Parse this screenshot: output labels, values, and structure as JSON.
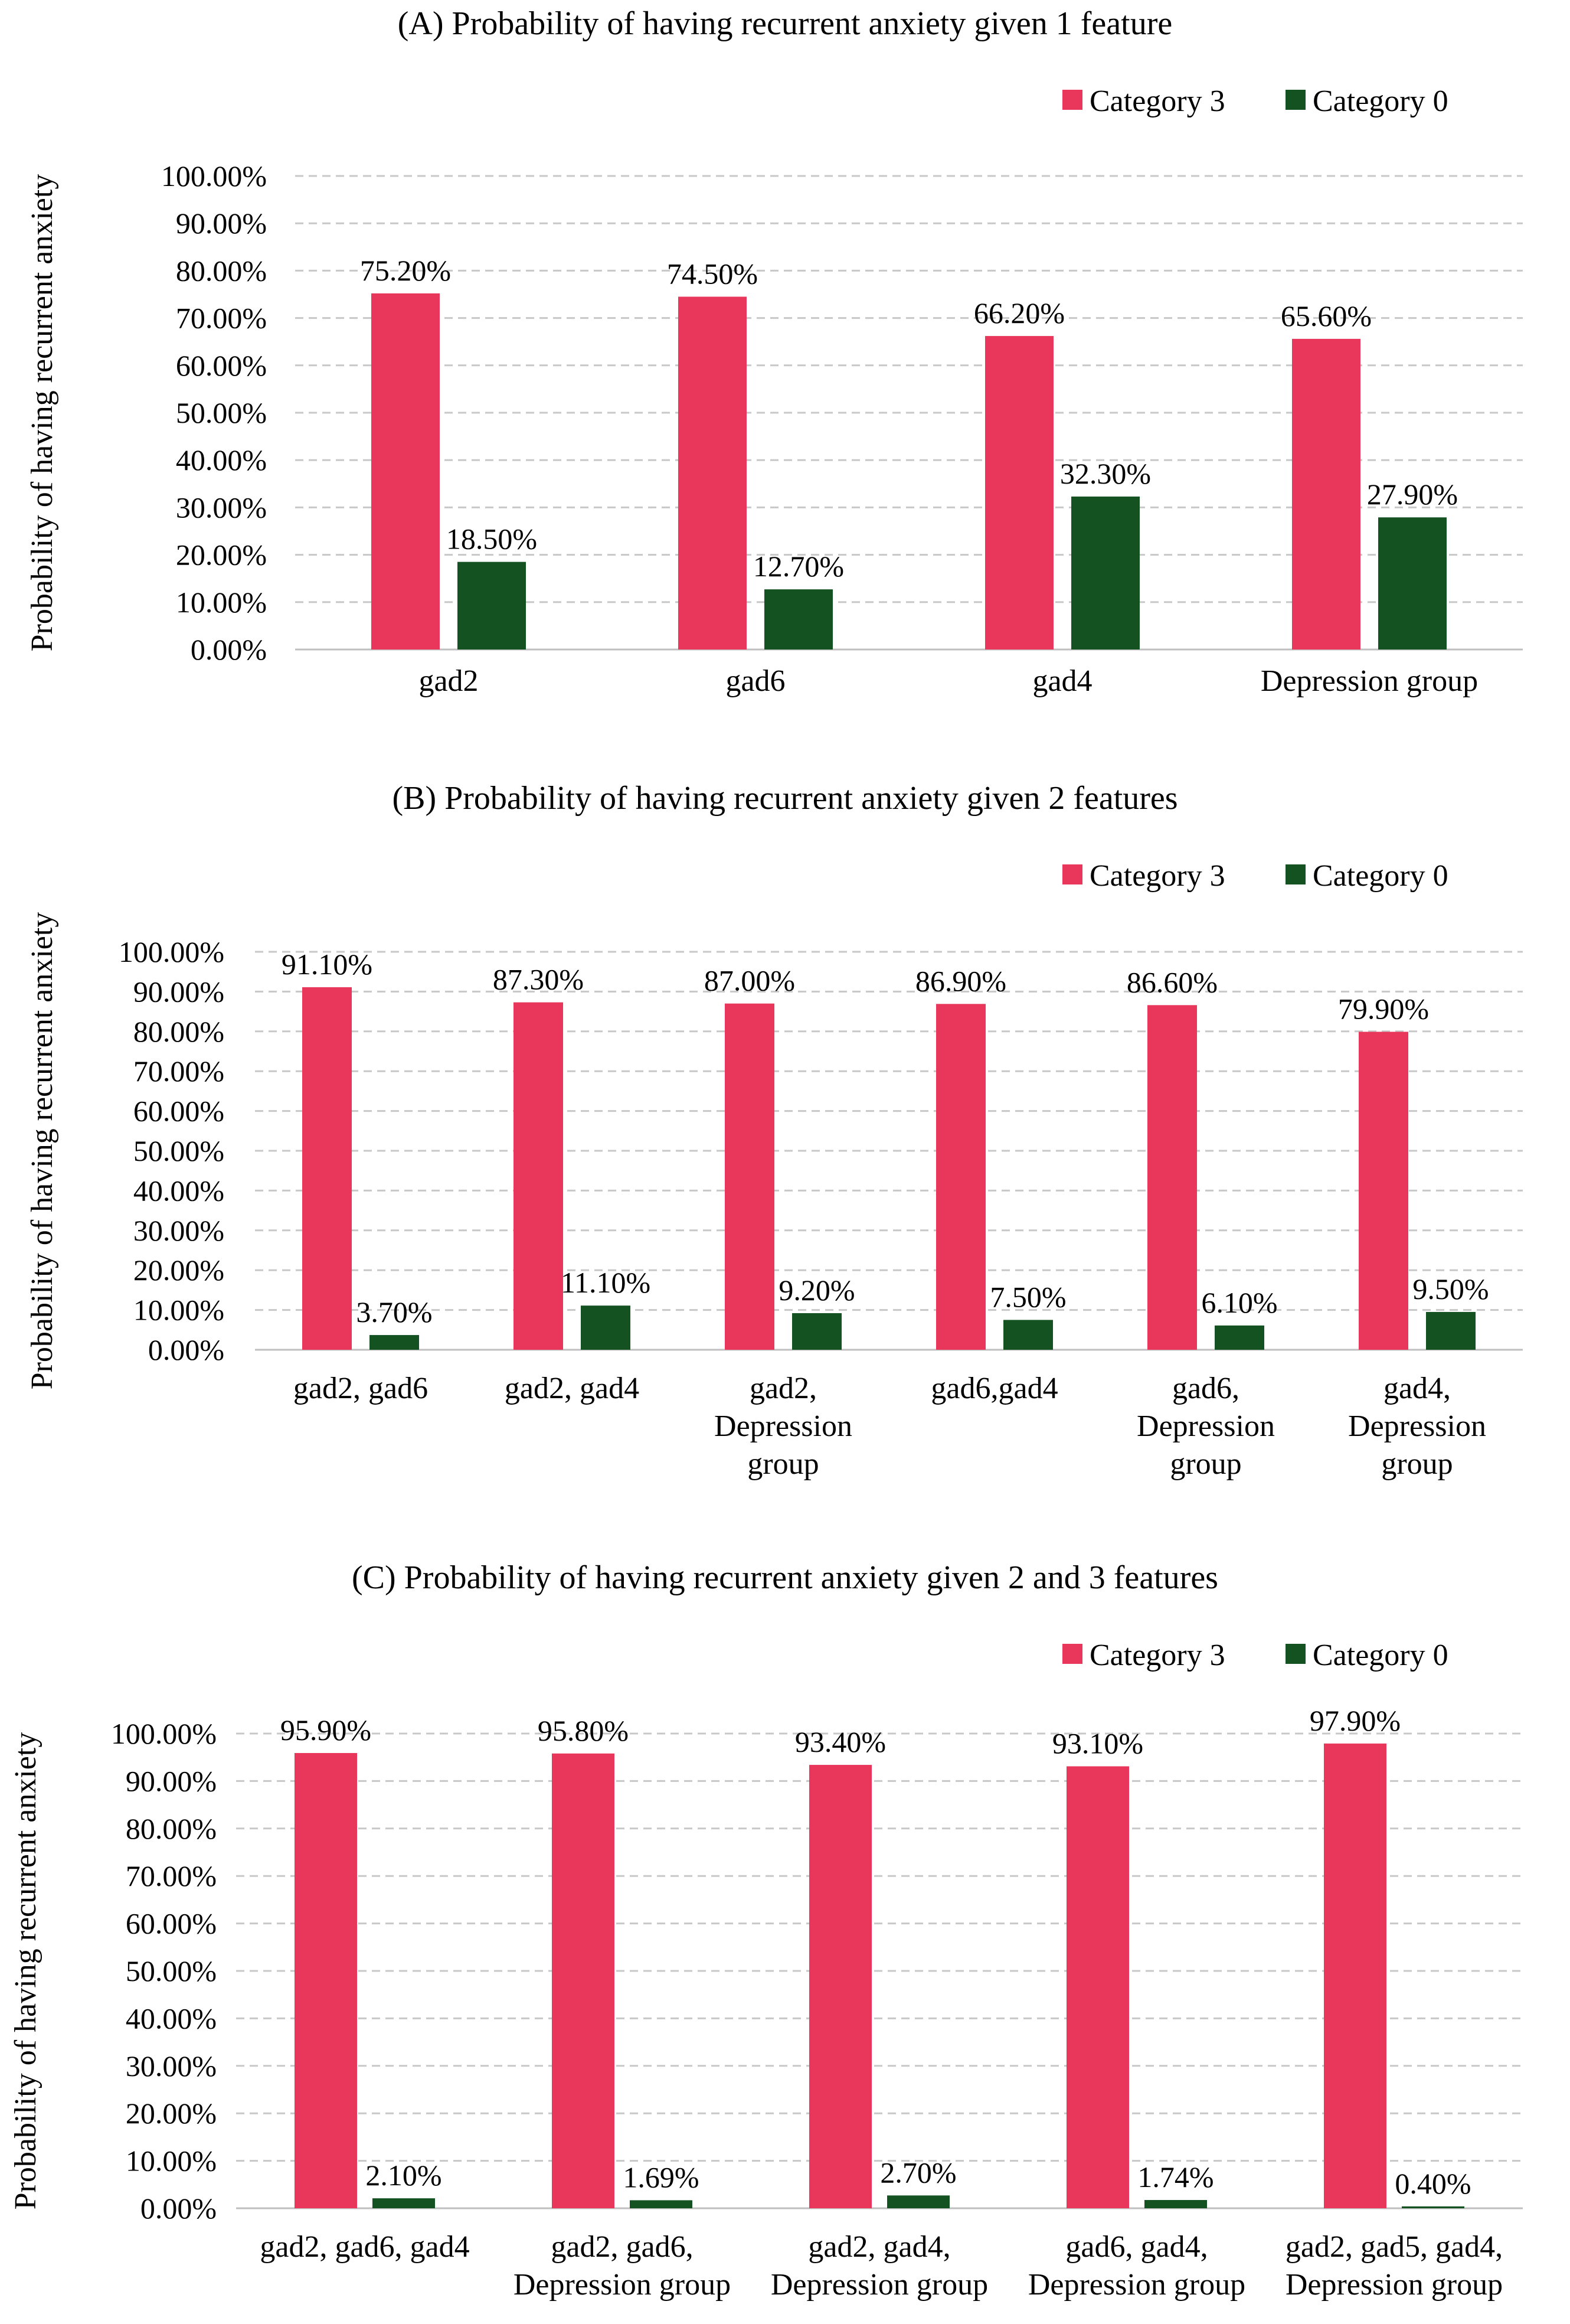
{
  "colors": {
    "category3": "#E8375A",
    "category0": "#145222",
    "grid": "#C8C8C8",
    "axis": "#BFBFBF"
  },
  "legend": {
    "category3": "Category 3",
    "category0": "Category 0"
  },
  "chart_data": [
    {
      "type": "bar",
      "title": "(A) Probability of having recurrent anxiety given 1 feature",
      "ylabel": "Probability of having recurrent anxiety",
      "xlabel": "",
      "ylim": [
        0,
        100
      ],
      "ytick_step": 10,
      "ytick_labels": [
        "0.00%",
        "10.00%",
        "20.00%",
        "30.00%",
        "40.00%",
        "50.00%",
        "60.00%",
        "70.00%",
        "80.00%",
        "90.00%",
        "100.00%"
      ],
      "legend_position": "top-right",
      "categories": [
        [
          "gad2"
        ],
        [
          "gad6"
        ],
        [
          "gad4"
        ],
        [
          "Depression group"
        ]
      ],
      "series": [
        {
          "name": "Category 3",
          "values": [
            75.2,
            74.5,
            66.2,
            65.6
          ],
          "labels": [
            "75.20%",
            "74.50%",
            "66.20%",
            "65.60%"
          ]
        },
        {
          "name": "Category 0",
          "values": [
            18.5,
            12.7,
            32.3,
            27.9
          ],
          "labels": [
            "18.50%",
            "12.70%",
            "32.30%",
            "27.90%"
          ]
        }
      ]
    },
    {
      "type": "bar",
      "title": "(B) Probability of having recurrent anxiety given 2 features",
      "ylabel": "Probability of having recurrent anxiety",
      "xlabel": "",
      "ylim": [
        0,
        100
      ],
      "ytick_step": 10,
      "ytick_labels": [
        "0.00%",
        "10.00%",
        "20.00%",
        "30.00%",
        "40.00%",
        "50.00%",
        "60.00%",
        "70.00%",
        "80.00%",
        "90.00%",
        "100.00%"
      ],
      "legend_position": "top-right",
      "categories": [
        [
          "gad2, gad6"
        ],
        [
          "gad2, gad4"
        ],
        [
          "gad2,",
          "Depression",
          "group"
        ],
        [
          "gad6,gad4"
        ],
        [
          "gad6,",
          "Depression",
          "group"
        ],
        [
          "gad4,",
          "Depression",
          "group"
        ]
      ],
      "series": [
        {
          "name": "Category 3",
          "values": [
            91.1,
            87.3,
            87.0,
            86.9,
            86.6,
            79.9
          ],
          "labels": [
            "91.10%",
            "87.30%",
            "87.00%",
            "86.90%",
            "86.60%",
            "79.90%"
          ]
        },
        {
          "name": "Category 0",
          "values": [
            3.7,
            11.1,
            9.2,
            7.5,
            6.1,
            9.5
          ],
          "labels": [
            "3.70%",
            "11.10%",
            "9.20%",
            "7.50%",
            "6.10%",
            "9.50%"
          ]
        }
      ]
    },
    {
      "type": "bar",
      "title": "(C) Probability of having recurrent anxiety given 2 and 3 features",
      "ylabel": "Probability of having recurrent anxiety",
      "xlabel": "",
      "ylim": [
        0,
        100
      ],
      "ytick_step": 10,
      "ytick_labels": [
        "0.00%",
        "10.00%",
        "20.00%",
        "30.00%",
        "40.00%",
        "50.00%",
        "60.00%",
        "70.00%",
        "80.00%",
        "90.00%",
        "100.00%"
      ],
      "legend_position": "top-right",
      "categories": [
        [
          "gad2, gad6, gad4"
        ],
        [
          "gad2, gad6,",
          "Depression group"
        ],
        [
          "gad2, gad4,",
          "Depression group"
        ],
        [
          "gad6, gad4,",
          "Depression group"
        ],
        [
          "gad2, gad5, gad4,",
          "Depression group"
        ]
      ],
      "series": [
        {
          "name": "Category 3",
          "values": [
            95.9,
            95.8,
            93.4,
            93.1,
            97.9
          ],
          "labels": [
            "95.90%",
            "95.80%",
            "93.40%",
            "93.10%",
            "97.90%"
          ]
        },
        {
          "name": "Category 0",
          "values": [
            2.1,
            1.69,
            2.7,
            1.74,
            0.4
          ],
          "labels": [
            "2.10%",
            "1.69%",
            "2.70%",
            "1.74%",
            "0.40%"
          ]
        }
      ]
    }
  ]
}
